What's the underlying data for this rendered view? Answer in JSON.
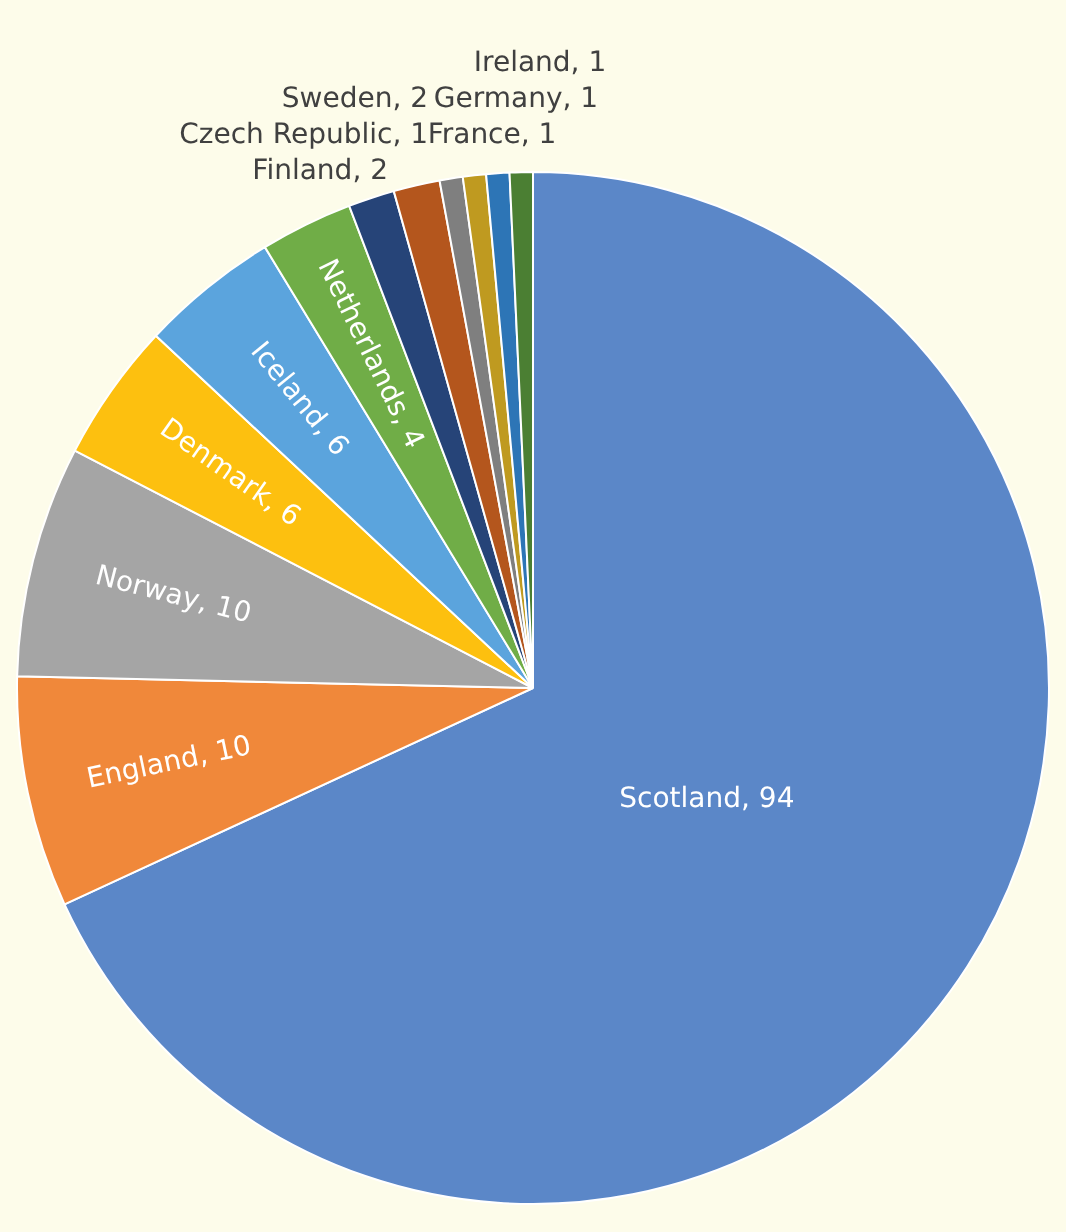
{
  "chart_data": {
    "type": "pie",
    "categories": [
      "Scotland",
      "England",
      "Norway",
      "Denmark",
      "Iceland",
      "Netherlands",
      "Finland",
      "Sweden",
      "Czech Republic",
      "France",
      "Germany",
      "Ireland"
    ],
    "value_labels": [
      ", 94",
      ", 10",
      ", 10",
      ", 6",
      ", 6",
      ", 4",
      ", 2",
      ", 2",
      ", 1",
      ", 1",
      ", 1",
      ", 1"
    ],
    "values": [
      94,
      10,
      10,
      6,
      6,
      4,
      2,
      2,
      1,
      1,
      1,
      1
    ],
    "colors": [
      "#5b87c8",
      "#f0883a",
      "#a5a5a5",
      "#fdc00f",
      "#5ba4dd",
      "#70ad47",
      "#264478",
      "#b4561d",
      "#7f7f7f",
      "#bf9a20",
      "#2d75b6",
      "#4b7f33"
    ],
    "legend": false
  }
}
